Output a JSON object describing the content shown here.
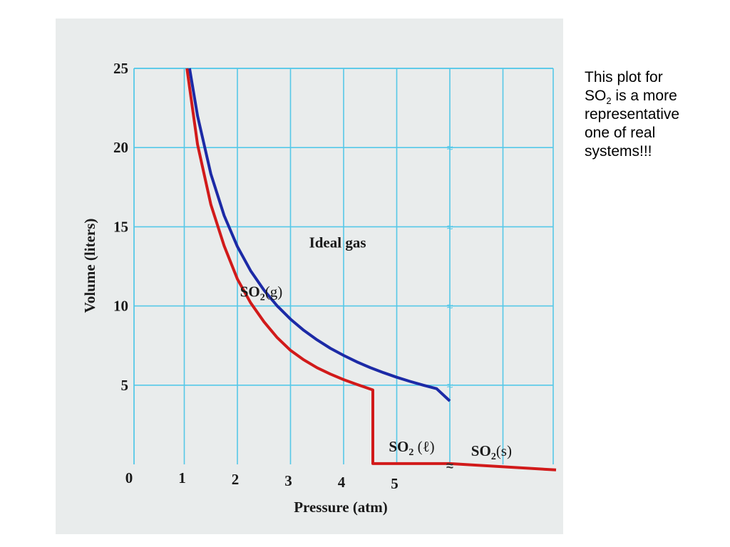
{
  "note": {
    "line1": "This plot for",
    "so2_main": "SO",
    "so2_sub": "2",
    "line2_rest": " is a more",
    "line3": "representative",
    "line4": "one of real",
    "line5": "systems!!!"
  },
  "chart_data": {
    "type": "line",
    "title": "",
    "xlabel": "Pressure (atm)",
    "ylabel": "Volume (liters)",
    "xlim": [
      0,
      8
    ],
    "ylim": [
      0,
      25
    ],
    "x_ticks": [
      0,
      1,
      2,
      3,
      4,
      5
    ],
    "y_ticks": [
      5,
      10,
      15,
      20,
      25
    ],
    "grid": true,
    "axis_break_marker": "≈",
    "series": [
      {
        "name": "Ideal gas",
        "color": "#1c2aa6",
        "x": [
          1.1,
          1.25,
          1.5,
          1.75,
          2.0,
          2.25,
          2.5,
          2.75,
          3.0,
          3.25,
          3.5,
          3.75,
          4.0,
          4.25,
          4.5,
          4.75,
          5.0,
          5.25,
          5.5,
          5.75,
          6.0
        ],
        "y": [
          25.0,
          22.0,
          18.33,
          15.71,
          13.75,
          12.22,
          11.0,
          10.0,
          9.17,
          8.46,
          7.86,
          7.33,
          6.88,
          6.47,
          6.11,
          5.79,
          5.5,
          5.24,
          5.0,
          4.78,
          4.0
        ]
      },
      {
        "name": "SO2(g)",
        "color": "#d11a1a",
        "x": [
          1.05,
          1.25,
          1.5,
          1.75,
          2.0,
          2.25,
          2.5,
          2.75,
          3.0,
          3.25,
          3.5,
          3.75,
          4.0,
          4.25,
          4.55,
          4.55,
          6.0,
          8.0
        ],
        "y": [
          25.0,
          20.2,
          16.4,
          13.8,
          11.7,
          10.2,
          9.0,
          8.0,
          7.2,
          6.6,
          6.1,
          5.7,
          5.35,
          5.05,
          4.7,
          0.05,
          0.05,
          -0.35
        ]
      }
    ],
    "annotations": [
      {
        "text": "Ideal gas",
        "x": 3.35,
        "y": 13.7
      },
      {
        "main": "SO",
        "sub": "2",
        "rest": "(g)",
        "x": 2.05,
        "y": 10.6
      },
      {
        "main": "SO",
        "sub": "2",
        "rest": " (ℓ)",
        "x": 4.85,
        "y": 0.8
      },
      {
        "main": "SO",
        "sub": "2",
        "rest": "(s)",
        "x": 6.4,
        "y": 0.55
      }
    ]
  }
}
